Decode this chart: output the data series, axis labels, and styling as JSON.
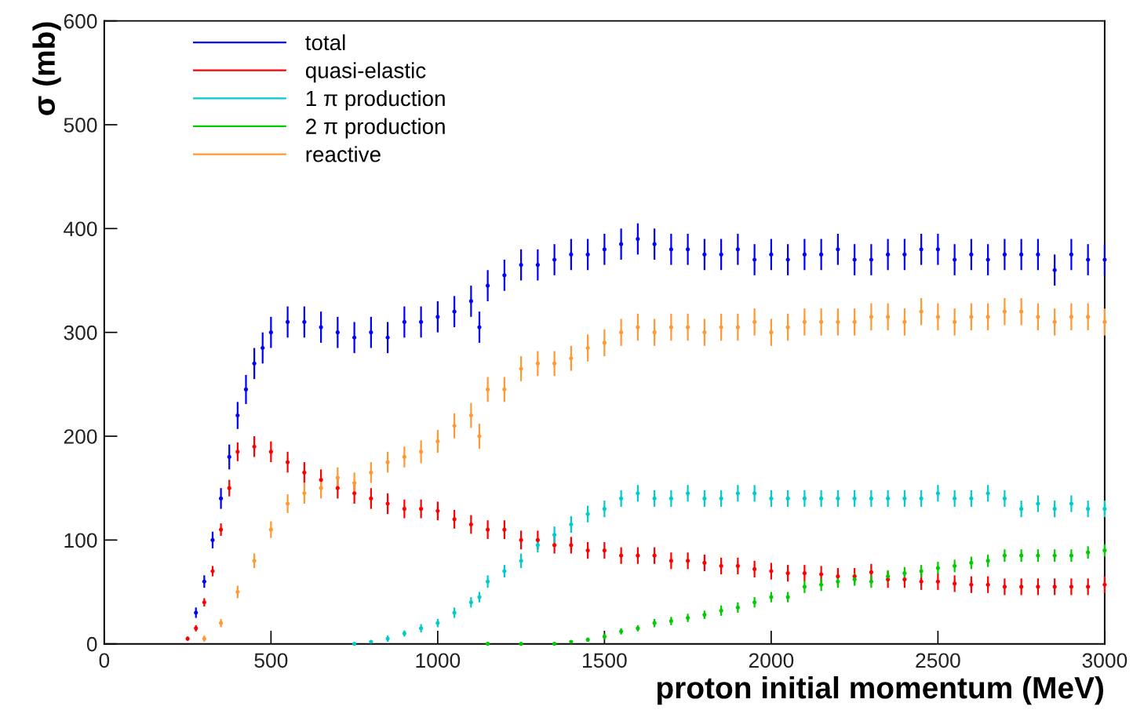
{
  "chart_data": {
    "type": "scatter",
    "xlabel": "proton initial momentum (MeV)",
    "ylabel": "σ (mb)",
    "xlim": [
      0,
      3000
    ],
    "xticks": [
      0,
      500,
      1000,
      1500,
      2000,
      2500,
      3000
    ],
    "ylim": [
      0,
      600
    ],
    "yticks": [
      0,
      100,
      200,
      300,
      400,
      500,
      600
    ],
    "grid": false,
    "legend": "top left",
    "marker": "circle",
    "series": [
      {
        "name": "total",
        "color": "#0000ff",
        "x": [
          275,
          300,
          325,
          350,
          375,
          400,
          425,
          450,
          475,
          500,
          550,
          600,
          650,
          700,
          750,
          800,
          850,
          900,
          950,
          1000,
          1050,
          1100,
          1125,
          1150,
          1200,
          1250,
          1300,
          1350,
          1400,
          1450,
          1500,
          1550,
          1600,
          1650,
          1700,
          1750,
          1800,
          1850,
          1900,
          1950,
          2000,
          2050,
          2100,
          2150,
          2200,
          2250,
          2300,
          2350,
          2400,
          2450,
          2500,
          2550,
          2600,
          2650,
          2700,
          2750,
          2800,
          2850,
          2900,
          2950,
          3000
        ],
        "values": [
          30,
          60,
          100,
          140,
          180,
          220,
          245,
          270,
          285,
          300,
          310,
          310,
          305,
          300,
          295,
          300,
          295,
          310,
          310,
          315,
          320,
          330,
          305,
          345,
          355,
          365,
          365,
          370,
          375,
          375,
          380,
          385,
          390,
          385,
          380,
          380,
          375,
          375,
          380,
          370,
          375,
          370,
          375,
          375,
          380,
          370,
          370,
          375,
          375,
          380,
          380,
          370,
          375,
          370,
          375,
          375,
          375,
          360,
          375,
          370,
          370
        ],
        "errors": [
          5,
          6,
          8,
          10,
          12,
          13,
          14,
          15,
          15,
          15,
          15,
          15,
          15,
          15,
          15,
          15,
          15,
          15,
          15,
          15,
          15,
          15,
          15,
          15,
          15,
          15,
          15,
          15,
          15,
          15,
          15,
          15,
          15,
          15,
          15,
          15,
          15,
          15,
          15,
          15,
          15,
          15,
          15,
          15,
          15,
          15,
          15,
          15,
          15,
          15,
          15,
          15,
          15,
          15,
          15,
          15,
          15,
          15,
          15,
          15,
          15
        ]
      },
      {
        "name": "quasi-elastic",
        "color": "#ff0000",
        "x": [
          250,
          275,
          300,
          325,
          350,
          375,
          400,
          450,
          500,
          550,
          600,
          650,
          700,
          750,
          800,
          850,
          900,
          950,
          1000,
          1050,
          1100,
          1150,
          1200,
          1250,
          1300,
          1350,
          1400,
          1450,
          1500,
          1550,
          1600,
          1650,
          1700,
          1750,
          1800,
          1850,
          1900,
          1950,
          2000,
          2050,
          2100,
          2150,
          2200,
          2250,
          2300,
          2350,
          2400,
          2450,
          2500,
          2550,
          2600,
          2650,
          2700,
          2750,
          2800,
          2850,
          2900,
          2950,
          3000
        ],
        "values": [
          5,
          15,
          40,
          70,
          110,
          150,
          185,
          190,
          185,
          175,
          165,
          158,
          150,
          145,
          140,
          135,
          130,
          130,
          128,
          120,
          115,
          110,
          110,
          100,
          100,
          95,
          95,
          90,
          90,
          85,
          85,
          85,
          80,
          80,
          78,
          75,
          75,
          72,
          70,
          68,
          68,
          67,
          65,
          65,
          69,
          62,
          62,
          60,
          60,
          58,
          57,
          57,
          55,
          55,
          55,
          55,
          55,
          55,
          57
        ],
        "errors": [
          2,
          3,
          4,
          5,
          6,
          8,
          9,
          10,
          10,
          10,
          10,
          10,
          10,
          10,
          10,
          10,
          9,
          9,
          9,
          9,
          9,
          9,
          9,
          9,
          9,
          8,
          8,
          8,
          8,
          8,
          8,
          8,
          8,
          8,
          8,
          8,
          8,
          8,
          8,
          8,
          8,
          8,
          8,
          8,
          8,
          8,
          8,
          8,
          8,
          8,
          8,
          8,
          8,
          8,
          8,
          8,
          8,
          8,
          8
        ]
      },
      {
        "name": "1 π production",
        "color": "#00cccc",
        "x": [
          750,
          800,
          850,
          900,
          950,
          1000,
          1050,
          1100,
          1125,
          1150,
          1200,
          1250,
          1300,
          1350,
          1400,
          1450,
          1500,
          1550,
          1600,
          1650,
          1700,
          1750,
          1800,
          1850,
          1900,
          1950,
          2000,
          2050,
          2100,
          2150,
          2200,
          2250,
          2300,
          2350,
          2400,
          2450,
          2500,
          2550,
          2600,
          2650,
          2700,
          2750,
          2800,
          2850,
          2900,
          2950,
          3000
        ],
        "values": [
          0,
          2,
          5,
          10,
          15,
          20,
          30,
          40,
          45,
          60,
          70,
          80,
          95,
          105,
          115,
          125,
          130,
          140,
          145,
          140,
          140,
          145,
          140,
          140,
          145,
          145,
          140,
          140,
          140,
          140,
          140,
          140,
          140,
          140,
          140,
          140,
          145,
          140,
          140,
          145,
          140,
          130,
          135,
          130,
          135,
          130,
          130
        ],
        "errors": [
          null,
          1,
          3,
          3,
          4,
          4,
          5,
          5,
          5,
          6,
          6,
          7,
          7,
          8,
          8,
          8,
          8,
          8,
          8,
          8,
          8,
          8,
          8,
          8,
          8,
          8,
          8,
          8,
          8,
          8,
          8,
          8,
          8,
          8,
          8,
          8,
          8,
          8,
          8,
          8,
          8,
          8,
          8,
          8,
          8,
          8,
          8
        ]
      },
      {
        "name": "2 π production",
        "color": "#00cc00",
        "x": [
          1150,
          1250,
          1350,
          1400,
          1450,
          1500,
          1550,
          1600,
          1650,
          1700,
          1750,
          1800,
          1850,
          1900,
          1950,
          2000,
          2050,
          2100,
          2150,
          2200,
          2250,
          2300,
          2350,
          2400,
          2450,
          2500,
          2550,
          2600,
          2650,
          2700,
          2750,
          2800,
          2850,
          2900,
          2950,
          3000
        ],
        "values": [
          0,
          0,
          0,
          2,
          4,
          7,
          12,
          15,
          20,
          22,
          25,
          28,
          32,
          35,
          40,
          45,
          45,
          55,
          57,
          60,
          62,
          60,
          65,
          68,
          70,
          73,
          75,
          78,
          80,
          85,
          85,
          85,
          85,
          85,
          88,
          90
        ],
        "errors": [
          null,
          null,
          null,
          1,
          2,
          3,
          3,
          3,
          4,
          4,
          4,
          4,
          5,
          5,
          5,
          5,
          5,
          6,
          6,
          6,
          6,
          6,
          6,
          6,
          6,
          6,
          6,
          6,
          6,
          6,
          6,
          6,
          6,
          6,
          6,
          6
        ]
      },
      {
        "name": "reactive",
        "color": "#ff9933",
        "x": [
          300,
          350,
          400,
          450,
          500,
          550,
          600,
          650,
          700,
          750,
          800,
          850,
          900,
          950,
          1000,
          1050,
          1100,
          1125,
          1150,
          1200,
          1250,
          1300,
          1350,
          1400,
          1450,
          1500,
          1550,
          1600,
          1650,
          1700,
          1750,
          1800,
          1850,
          1900,
          1950,
          2000,
          2050,
          2100,
          2150,
          2200,
          2250,
          2300,
          2350,
          2400,
          2450,
          2500,
          2550,
          2600,
          2650,
          2700,
          2750,
          2800,
          2850,
          2900,
          2950,
          3000
        ],
        "values": [
          5,
          20,
          50,
          80,
          110,
          135,
          145,
          150,
          160,
          155,
          165,
          175,
          180,
          185,
          195,
          210,
          220,
          200,
          245,
          245,
          265,
          270,
          270,
          275,
          285,
          290,
          300,
          305,
          300,
          305,
          305,
          300,
          305,
          305,
          310,
          300,
          305,
          310,
          310,
          310,
          310,
          315,
          315,
          310,
          320,
          315,
          310,
          315,
          315,
          320,
          320,
          315,
          310,
          315,
          315,
          310
        ],
        "errors": [
          3,
          4,
          6,
          7,
          8,
          9,
          10,
          10,
          10,
          10,
          10,
          10,
          10,
          11,
          11,
          12,
          12,
          12,
          12,
          12,
          12,
          12,
          12,
          12,
          13,
          13,
          13,
          13,
          13,
          13,
          13,
          13,
          13,
          13,
          13,
          13,
          13,
          13,
          13,
          13,
          13,
          13,
          13,
          13,
          13,
          13,
          13,
          13,
          13,
          13,
          13,
          13,
          13,
          13,
          13,
          13
        ]
      }
    ]
  }
}
